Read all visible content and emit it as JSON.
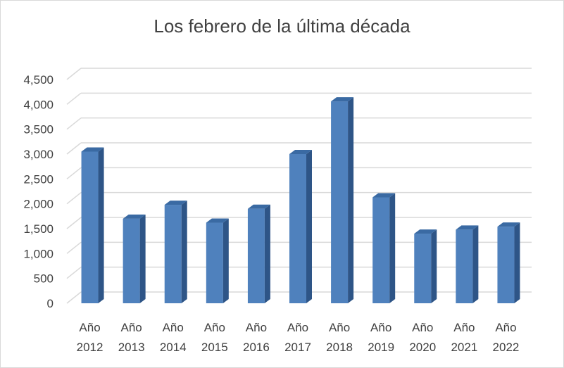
{
  "chart_data": {
    "type": "bar",
    "title": "Los febrero de la última década",
    "categories": [
      [
        "Año",
        "2012"
      ],
      [
        "Año",
        "2013"
      ],
      [
        "Año",
        "2014"
      ],
      [
        "Año",
        "2015"
      ],
      [
        "Año",
        "2016"
      ],
      [
        "Año",
        "2017"
      ],
      [
        "Año",
        "2018"
      ],
      [
        "Año",
        "2019"
      ],
      [
        "Año",
        "2020"
      ],
      [
        "Año",
        "2021"
      ],
      [
        "Año",
        "2022"
      ]
    ],
    "values": [
      3050,
      1700,
      1980,
      1620,
      1900,
      3000,
      4060,
      2130,
      1400,
      1480,
      1540
    ],
    "ylim": [
      0,
      4500
    ],
    "yticks": [
      0,
      500,
      1000,
      1500,
      2000,
      2500,
      3000,
      3500,
      4000,
      4500
    ],
    "ytick_labels": [
      "0",
      "500",
      "1,000",
      "1,500",
      "2,000",
      "2,500",
      "3,000",
      "3,500",
      "4,000",
      "4,500"
    ],
    "xlabel": "",
    "ylabel": "",
    "grid": true,
    "legend": "none",
    "style": "3d-column",
    "colors": {
      "bar_front": "#4f81bd",
      "bar_side": "#2e5587",
      "bar_top": "#3a6aa3",
      "grid": "#d9d9d9",
      "text": "#404040"
    }
  }
}
